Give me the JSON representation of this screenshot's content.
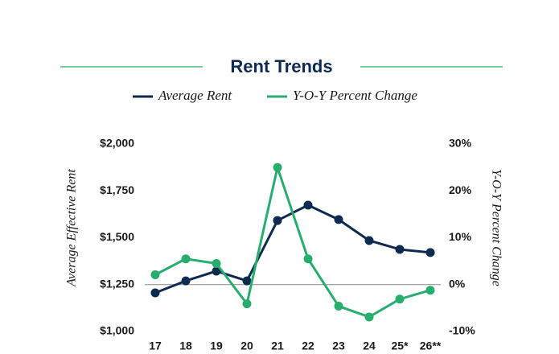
{
  "chart_data": {
    "type": "line",
    "title": "Rent Trends",
    "categories": [
      "17",
      "18",
      "19",
      "20",
      "21",
      "22",
      "23",
      "24",
      "25*",
      "26**"
    ],
    "series": [
      {
        "name": "Average Rent",
        "color": "#0d2a4f",
        "values": [
          1206,
          1270,
          1322,
          1270,
          1592,
          1674,
          1597,
          1485,
          1438,
          1421
        ]
      },
      {
        "name": "Y-O-Y Percent Change",
        "color": "#27ae6e",
        "axis": "y2",
        "values": [
          2.1,
          5.5,
          4.5,
          -4.1,
          25.0,
          5.5,
          -4.6,
          -6.9,
          -3.1,
          -1.2
        ]
      }
    ],
    "ylabel": "Average Effective Rent",
    "y2label": "Y-O-Y Percent Change",
    "ylim": [
      1000,
      2000
    ],
    "yticks": [
      {
        "value": 1000,
        "label": "$1,000"
      },
      {
        "value": 1250,
        "label": "$1,250"
      },
      {
        "value": 1500,
        "label": "$1,500"
      },
      {
        "value": 1750,
        "label": "$1,750"
      },
      {
        "value": 2000,
        "label": "$2,000"
      }
    ],
    "y2lim": [
      -10,
      30
    ],
    "y2ticks": [
      {
        "value": -10,
        "label": "-10%"
      },
      {
        "value": 0,
        "label": "0%"
      },
      {
        "value": 10,
        "label": "10%"
      },
      {
        "value": 20,
        "label": "20%"
      },
      {
        "value": 30,
        "label": "30%"
      }
    ],
    "zero_line": true
  }
}
